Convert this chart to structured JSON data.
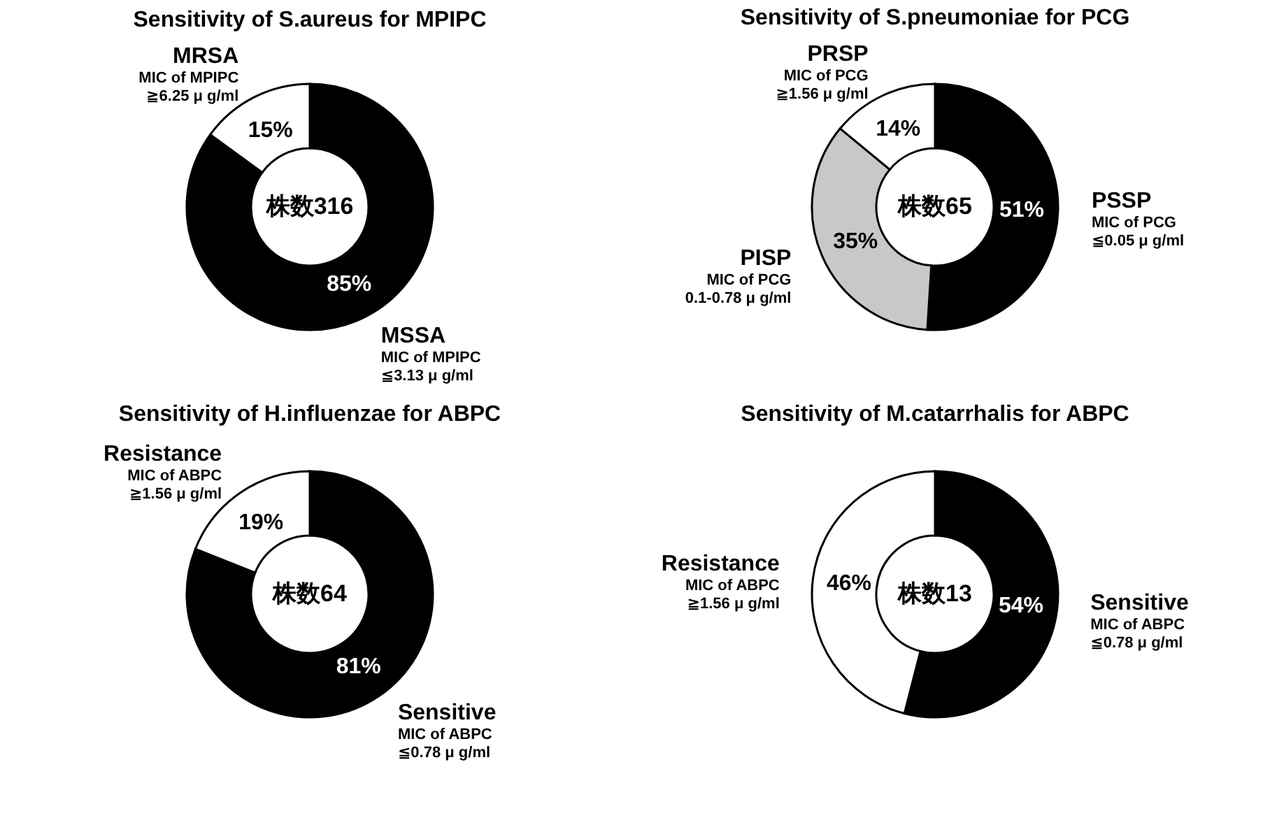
{
  "chart_data": [
    {
      "type": "donut",
      "title": "Sensitivity of S.aureus for MPIPC",
      "categories": [
        "MSSA",
        "MRSA"
      ],
      "values": [
        85,
        15
      ],
      "value_labels": [
        "85%",
        "15%"
      ],
      "colors": [
        "#000000",
        "#ffffff"
      ],
      "legend": false,
      "annotations": [
        "株数316",
        "MIC of MPIPC\n≦3.13 μ g/ml",
        "MIC of MPIPC\n≧6.25 μ g/ml"
      ]
    },
    {
      "type": "donut",
      "title": "Sensitivity of S.pneumoniae for PCG",
      "categories": [
        "PSSP",
        "PISP",
        "PRSP"
      ],
      "values": [
        51,
        35,
        14
      ],
      "value_labels": [
        "51%",
        "35%",
        "14%"
      ],
      "colors": [
        "#000000",
        "#c8c8c8",
        "#ffffff"
      ],
      "legend": false,
      "annotations": [
        "株数65",
        "MIC of PCG\n≦0.05 μ g/ml",
        "MIC of PCG\n0.1-0.78 μ g/ml",
        "MIC of PCG\n≧1.56 μ g/ml"
      ]
    },
    {
      "type": "donut",
      "title": "Sensitivity of H.influenzae for ABPC",
      "categories": [
        "Sensitive",
        "Resistance"
      ],
      "values": [
        81,
        19
      ],
      "value_labels": [
        "81%",
        "19%"
      ],
      "colors": [
        "#000000",
        "#ffffff"
      ],
      "legend": false,
      "annotations": [
        "株数64",
        "MIC of ABPC\n≦0.78 μ g/ml",
        "MIC of ABPC\n≧1.56 μ g/ml"
      ]
    },
    {
      "type": "donut",
      "title": "Sensitivity of M.catarrhalis for ABPC",
      "categories": [
        "Sensitive",
        "Resistance"
      ],
      "values": [
        54,
        46
      ],
      "value_labels": [
        "54%",
        "46%"
      ],
      "colors": [
        "#000000",
        "#ffffff"
      ],
      "legend": false,
      "annotations": [
        "株数13",
        "MIC of ABPC\n≦0.78 μ g/ml",
        "MIC of ABPC\n≧1.56 μ g/ml"
      ]
    }
  ]
}
